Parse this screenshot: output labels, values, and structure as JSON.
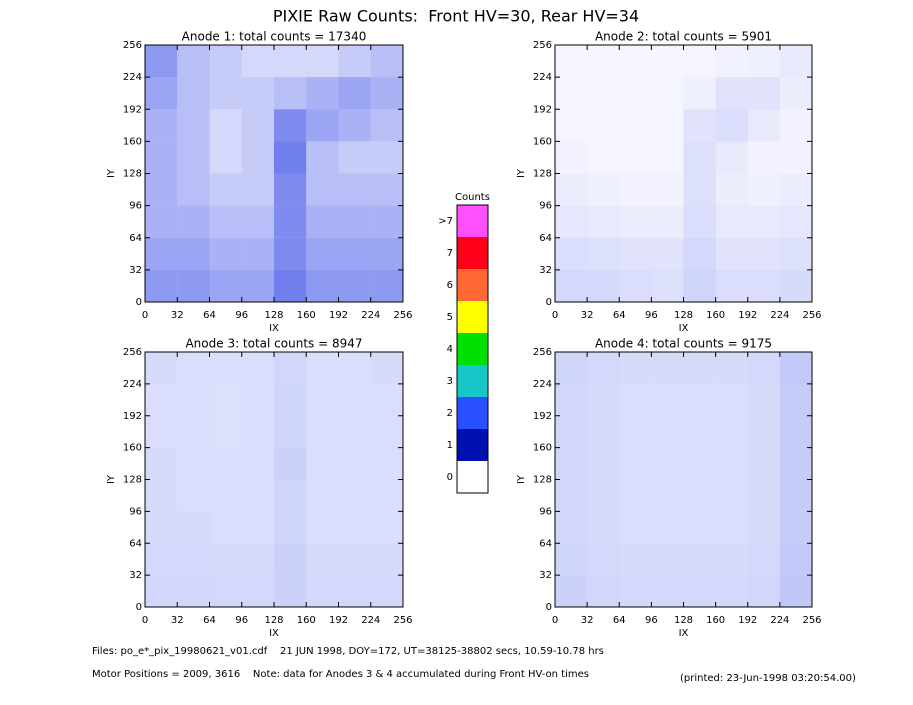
{
  "title": "PIXIE Raw Counts:  Front HV=30, Rear HV=34",
  "footer": [
    "Files: po_e*_pix_19980621_v01.cdf    21 JUN 1998, DOY=172, UT=38125-38802 secs, 10.59-10.78 hrs",
    "Motor Positions = 2009, 3616    Note: data for Anodes 3 & 4 accumulated during Front HV-on times",
    "(printed: 23-Jun-1998 03:20:54.00)"
  ],
  "chart_data": [
    {
      "type": "heatmap",
      "title": "Anode 1: total counts = 17340",
      "xlabel": "IX",
      "ylabel": "IY",
      "color": "#0018e0",
      "xlim": [
        0,
        256
      ],
      "ylim": [
        0,
        256
      ],
      "xticks": [
        0,
        32,
        64,
        96,
        128,
        160,
        192,
        224,
        256
      ],
      "yticks": [
        0,
        32,
        64,
        96,
        128,
        160,
        192,
        224,
        256
      ],
      "cell_counts": [
        [
          400,
          400,
          350,
          350,
          500,
          400,
          400,
          400
        ],
        [
          350,
          350,
          300,
          300,
          450,
          350,
          350,
          350
        ],
        [
          300,
          300,
          250,
          250,
          450,
          300,
          300,
          300
        ],
        [
          300,
          250,
          200,
          200,
          450,
          250,
          250,
          250
        ],
        [
          300,
          250,
          150,
          200,
          500,
          250,
          200,
          200
        ],
        [
          300,
          250,
          150,
          200,
          450,
          350,
          300,
          250
        ],
        [
          350,
          250,
          200,
          200,
          250,
          300,
          350,
          300
        ],
        [
          400,
          250,
          200,
          150,
          150,
          150,
          200,
          250
        ]
      ]
    },
    {
      "type": "heatmap",
      "title": "Anode 2: total counts = 5901",
      "xlabel": "IX",
      "ylabel": "IY",
      "color": "#0018e0",
      "xlim": [
        0,
        256
      ],
      "ylim": [
        0,
        256
      ],
      "xticks": [
        0,
        32,
        64,
        96,
        128,
        160,
        192,
        224,
        256
      ],
      "yticks": [
        0,
        32,
        64,
        96,
        128,
        160,
        192,
        224,
        256
      ],
      "cell_counts": [
        [
          150,
          150,
          130,
          120,
          170,
          130,
          130,
          140
        ],
        [
          130,
          120,
          110,
          110,
          150,
          110,
          110,
          120
        ],
        [
          90,
          80,
          70,
          70,
          130,
          80,
          80,
          90
        ],
        [
          70,
          60,
          50,
          50,
          120,
          70,
          60,
          70
        ],
        [
          50,
          40,
          30,
          40,
          120,
          80,
          50,
          50
        ],
        [
          40,
          30,
          30,
          30,
          110,
          130,
          80,
          50
        ],
        [
          40,
          30,
          30,
          40,
          60,
          110,
          110,
          70
        ],
        [
          40,
          40,
          30,
          30,
          40,
          50,
          60,
          80
        ]
      ]
    },
    {
      "type": "heatmap",
      "title": "Anode 3: total counts = 8947",
      "xlabel": "IX",
      "ylabel": "IY",
      "color": "#0018e0",
      "xlim": [
        0,
        256
      ],
      "ylim": [
        0,
        256
      ],
      "xticks": [
        0,
        32,
        64,
        96,
        128,
        160,
        192,
        224,
        256
      ],
      "yticks": [
        0,
        32,
        64,
        96,
        128,
        160,
        192,
        224,
        256
      ],
      "cell_counts": [
        [
          160,
          160,
          150,
          150,
          180,
          150,
          150,
          150
        ],
        [
          150,
          150,
          140,
          140,
          180,
          140,
          140,
          140
        ],
        [
          140,
          140,
          130,
          130,
          170,
          130,
          130,
          130
        ],
        [
          140,
          130,
          130,
          130,
          170,
          130,
          130,
          130
        ],
        [
          140,
          130,
          130,
          130,
          180,
          130,
          130,
          130
        ],
        [
          130,
          130,
          120,
          130,
          170,
          130,
          130,
          130
        ],
        [
          130,
          130,
          120,
          130,
          170,
          130,
          130,
          130
        ],
        [
          140,
          130,
          130,
          130,
          160,
          130,
          130,
          140
        ]
      ]
    },
    {
      "type": "heatmap",
      "title": "Anode 4: total counts = 9175",
      "xlabel": "IX",
      "ylabel": "IY",
      "color": "#0018e0",
      "xlim": [
        0,
        256
      ],
      "ylim": [
        0,
        256
      ],
      "xticks": [
        0,
        32,
        64,
        96,
        128,
        160,
        192,
        224,
        256
      ],
      "yticks": [
        0,
        32,
        64,
        96,
        128,
        160,
        192,
        224,
        256
      ],
      "cell_counts": [
        [
          180,
          160,
          150,
          150,
          150,
          150,
          160,
          220
        ],
        [
          170,
          150,
          140,
          140,
          140,
          140,
          150,
          210
        ],
        [
          160,
          140,
          130,
          130,
          130,
          130,
          140,
          200
        ],
        [
          160,
          140,
          130,
          130,
          130,
          130,
          140,
          200
        ],
        [
          160,
          140,
          130,
          130,
          130,
          130,
          140,
          200
        ],
        [
          160,
          140,
          130,
          130,
          130,
          130,
          140,
          200
        ],
        [
          160,
          140,
          130,
          130,
          130,
          130,
          140,
          200
        ],
        [
          170,
          150,
          140,
          140,
          140,
          140,
          150,
          210
        ]
      ]
    },
    {
      "type": "colorbar",
      "title": "Counts",
      "ticks": [
        0,
        1,
        2,
        3,
        4,
        5,
        6,
        7,
        {
          "value": 8,
          "label": ">7"
        }
      ],
      "colors": [
        "#ffffff",
        "#0010b0",
        "#2850ff",
        "#18c8c8",
        "#00e000",
        "#ffff00",
        "#ff6830",
        "#ff0018",
        "#ff50ff"
      ]
    }
  ]
}
